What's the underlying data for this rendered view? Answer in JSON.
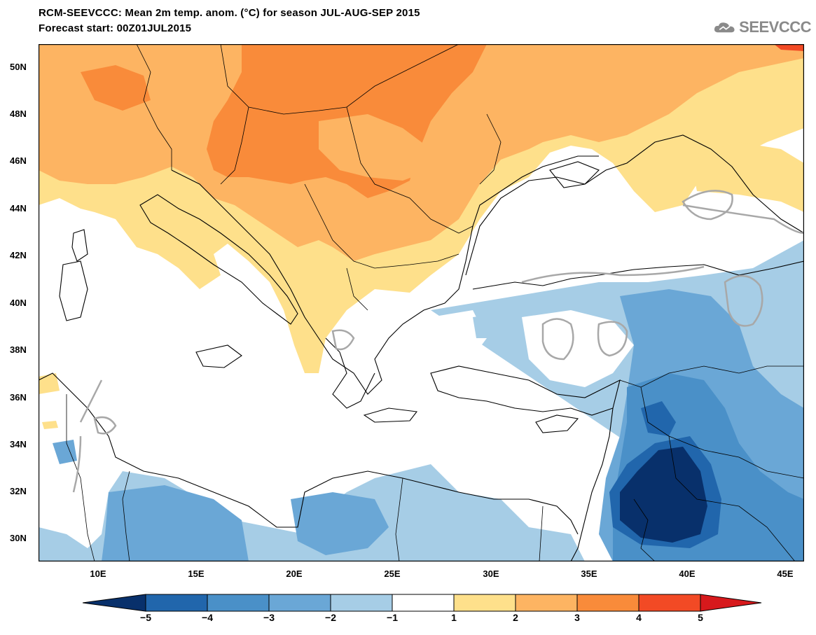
{
  "header": {
    "title_line1": "RCM-SEEVCCC: Mean 2m temp. anom. (°C) for season JUL-AUG-SEP 2015",
    "title_line2": "Forecast start: 00Z01JUL2015",
    "logo_text": "SEEVCCC",
    "logo_icon": "cloud-icon"
  },
  "map": {
    "lat_ticks": [
      "50N",
      "48N",
      "46N",
      "44N",
      "42N",
      "40N",
      "38N",
      "36N",
      "34N",
      "32N",
      "30N"
    ],
    "lon_ticks": [
      "10E",
      "15E",
      "20E",
      "25E",
      "30E",
      "35E",
      "40E",
      "45E"
    ]
  },
  "colorbar": {
    "labels": [
      "−5",
      "−4",
      "−3",
      "−2",
      "−1",
      "1",
      "2",
      "3",
      "4",
      "5"
    ],
    "colors": [
      "#08306b",
      "#2166ac",
      "#4a90c8",
      "#6aa7d6",
      "#a6cde6",
      "#ffffff",
      "#fee08b",
      "#fdb462",
      "#f98b3a",
      "#f24a25",
      "#d7191c"
    ]
  }
}
